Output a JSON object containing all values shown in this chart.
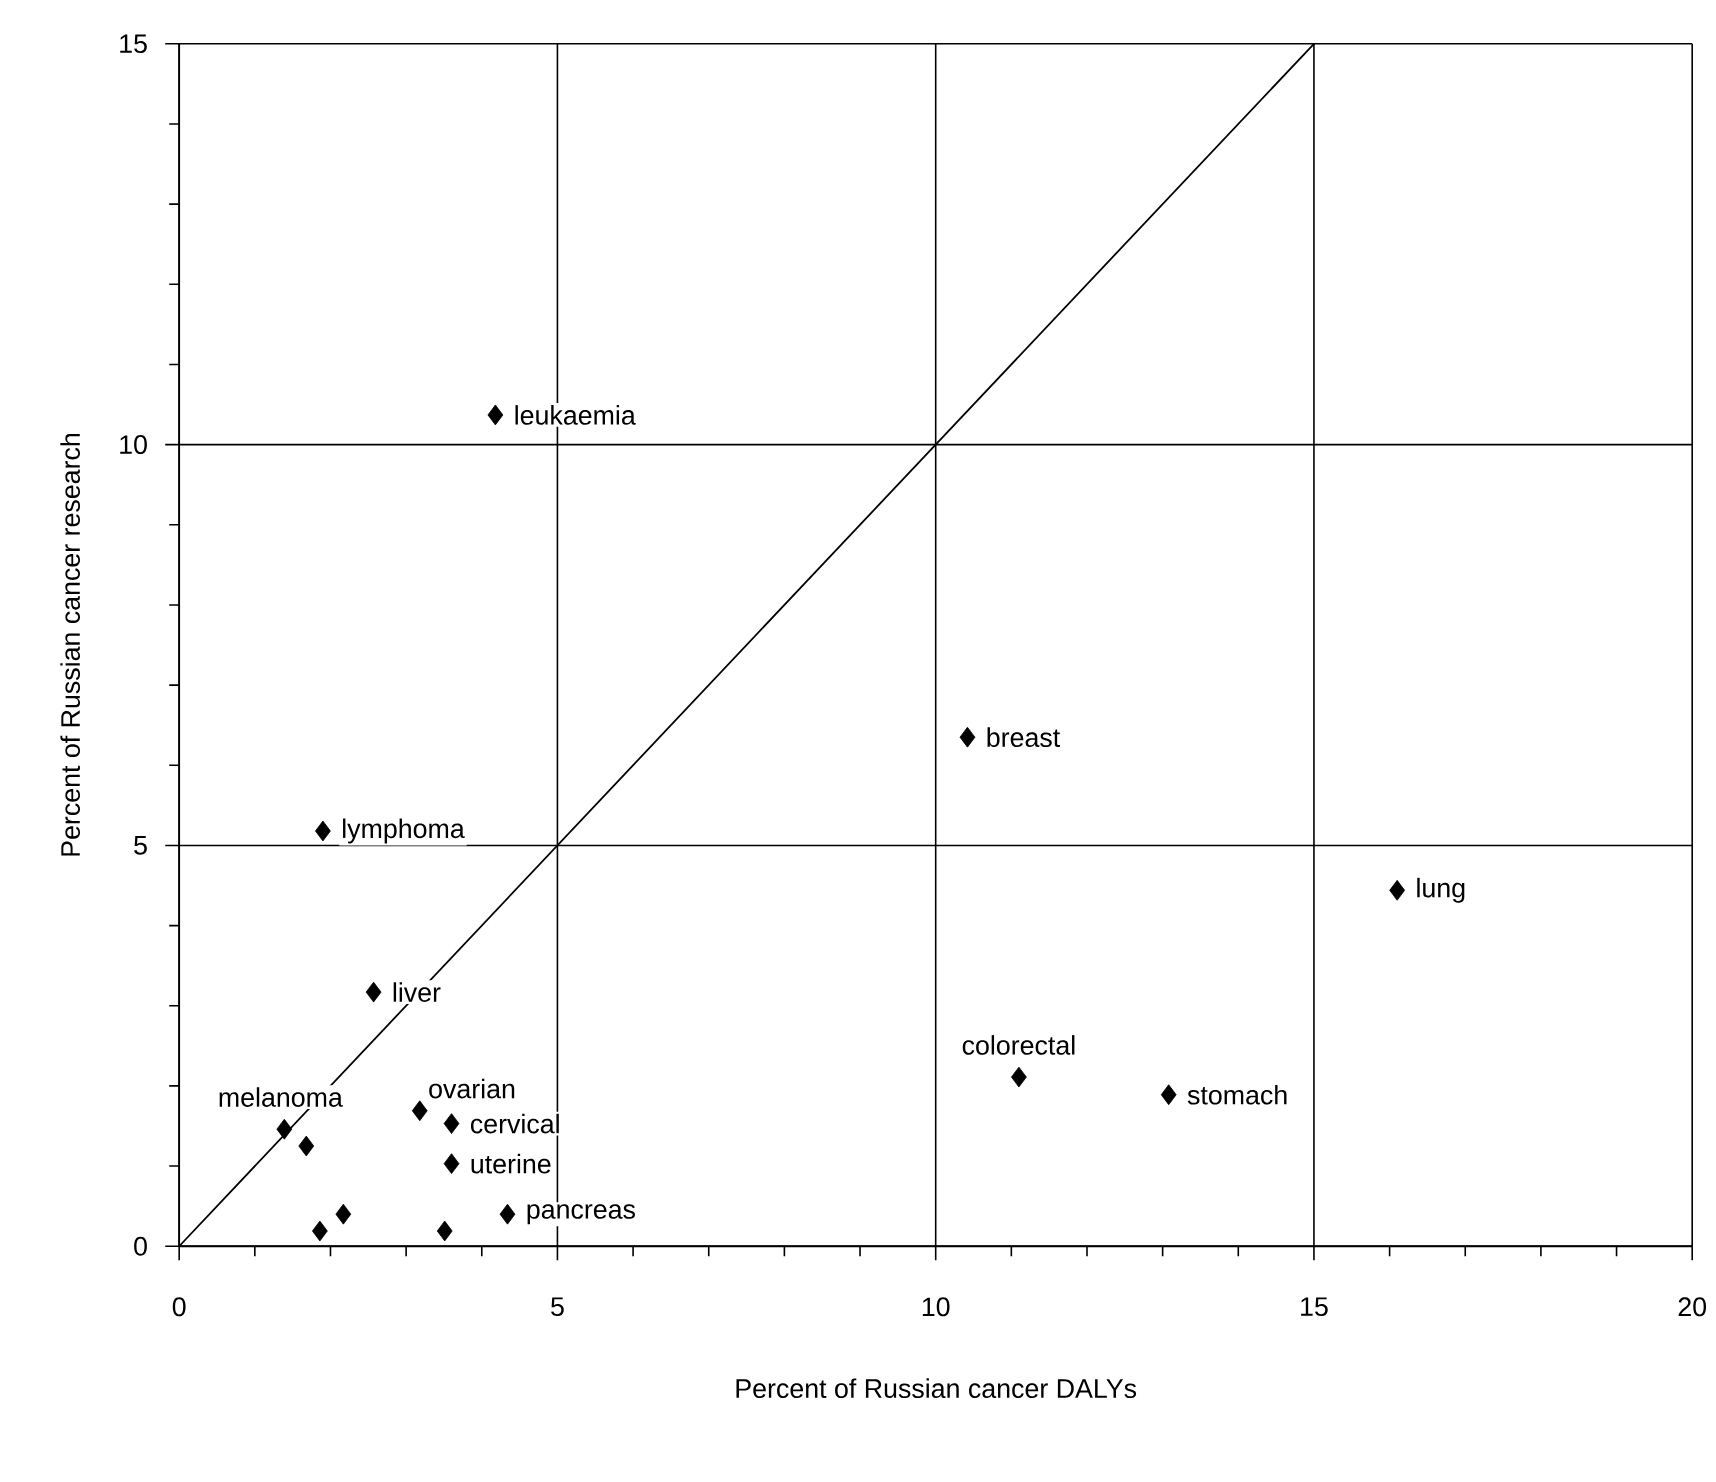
{
  "chart_data": {
    "type": "scatter",
    "xlabel": "Percent of Russian cancer DALYs",
    "ylabel": "Percent of Russian cancer research",
    "xlim": [
      0,
      20
    ],
    "ylim": [
      0,
      15
    ],
    "xticks": [
      0,
      5,
      10,
      15,
      20
    ],
    "yticks": [
      0,
      5,
      10,
      15
    ],
    "grid": true,
    "marker": "diamond",
    "series": [
      {
        "color": "#000000",
        "x": [
          4.18,
          10.42,
          16.1,
          11.1,
          13.08,
          1.9,
          2.57,
          1.39,
          1.68,
          3.18,
          3.6,
          3.6,
          4.34,
          2.17,
          1.86,
          3.51
        ],
        "values": [
          10.37,
          6.35,
          4.44,
          2.11,
          1.89,
          5.18,
          3.17,
          1.46,
          1.25,
          1.69,
          1.53,
          1.03,
          0.4,
          0.4,
          0.19,
          0.19
        ]
      },
      {
        "type": "line",
        "color": "#000000",
        "marker": "none",
        "x": [
          0,
          15
        ],
        "values": [
          0,
          15
        ]
      }
    ],
    "annotations": [
      {
        "text": "leukaemia",
        "x": 4.18,
        "y": 10.37
      },
      {
        "text": "breast",
        "x": 10.42,
        "y": 6.35
      },
      {
        "text": "lung",
        "x": 16.1,
        "y": 4.44
      },
      {
        "text": "colorectal",
        "x": 11.1,
        "y": 2.11
      },
      {
        "text": "stomach",
        "x": 13.08,
        "y": 1.89
      },
      {
        "text": "lymphoma",
        "x": 1.9,
        "y": 5.18
      },
      {
        "text": "liver",
        "x": 2.57,
        "y": 3.17
      },
      {
        "text": "melanoma",
        "x": 1.39,
        "y": 1.46
      },
      {
        "text": "ovarian",
        "x": 3.18,
        "y": 1.69
      },
      {
        "text": "cervical",
        "x": 3.6,
        "y": 1.53
      },
      {
        "text": "uterine",
        "x": 3.6,
        "y": 1.03
      },
      {
        "text": "pancreas",
        "x": 4.34,
        "y": 0.4
      }
    ]
  }
}
